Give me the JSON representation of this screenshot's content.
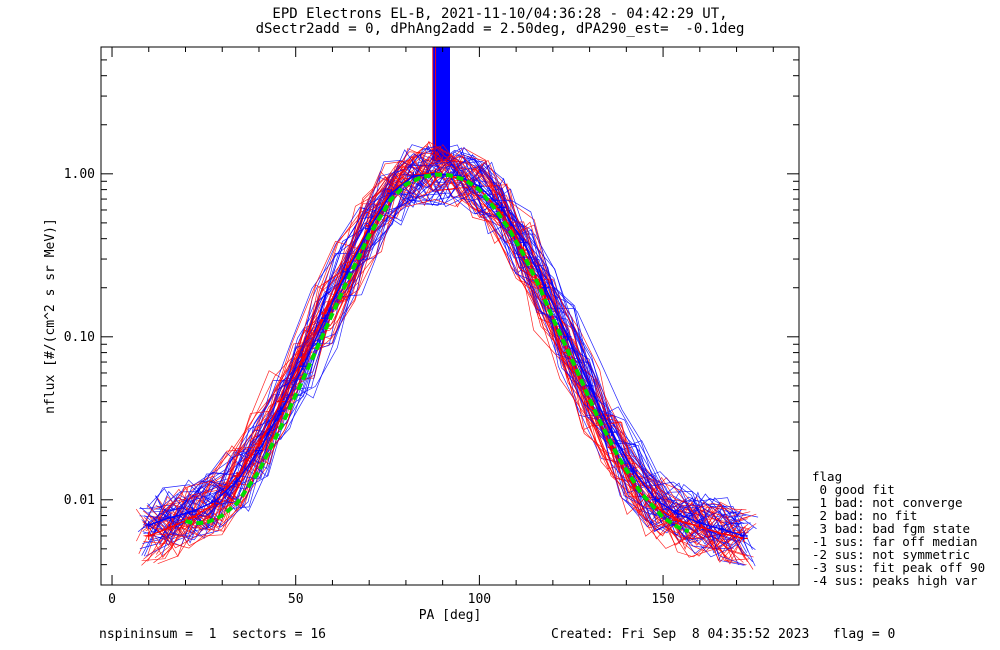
{
  "chart_data": {
    "type": "line",
    "title": "EPD Electrons EL-B, 2021-11-10/04:36:28 - 04:42:29 UT,",
    "subtitle": "dSectr2add = 0, dPhAng2add = 2.50deg, dPA290_est=  -0.1deg",
    "xlabel": "PA [deg]",
    "ylabel": "nflux [#/(cm^2 s sr MeV)]",
    "xlim": [
      -3,
      187
    ],
    "ylim": [
      0.003,
      6.0
    ],
    "yscale": "log",
    "x_ticks": [
      "0",
      "50",
      "100",
      "150"
    ],
    "y_ticks": [
      "0.01",
      "0.10",
      "1.00"
    ],
    "series": [
      {
        "color": "#ff0000",
        "marker": "+",
        "x": [
          10,
          16,
          22,
          28,
          34,
          40,
          46,
          52,
          58,
          64,
          70,
          76,
          82,
          88,
          94,
          100,
          106,
          112,
          118,
          124,
          130,
          136,
          142,
          148,
          154,
          160,
          166,
          172
        ],
        "y": [
          0.006,
          0.0068,
          0.0078,
          0.0095,
          0.014,
          0.022,
          0.04,
          0.075,
          0.14,
          0.26,
          0.48,
          0.78,
          0.98,
          1.02,
          0.95,
          0.8,
          0.58,
          0.34,
          0.17,
          0.08,
          0.04,
          0.021,
          0.012,
          0.009,
          0.0075,
          0.0068,
          0.0062,
          0.0058
        ]
      },
      {
        "color": "#0000ff",
        "marker": "+",
        "x": [
          10,
          16,
          22,
          28,
          34,
          40,
          46,
          52,
          58,
          64,
          70,
          76,
          82,
          88,
          94,
          100,
          106,
          112,
          118,
          124,
          130,
          136,
          142,
          148,
          154,
          160,
          166,
          172
        ],
        "y": [
          0.007,
          0.0078,
          0.0085,
          0.0098,
          0.013,
          0.02,
          0.035,
          0.066,
          0.13,
          0.25,
          0.46,
          0.76,
          0.97,
          1.0,
          0.98,
          0.84,
          0.62,
          0.38,
          0.2,
          0.1,
          0.05,
          0.026,
          0.015,
          0.01,
          0.0082,
          0.0072,
          0.0066,
          0.006
        ]
      },
      {
        "color": "#00dd00",
        "style": "dashed",
        "x": [
          20,
          22,
          24,
          26,
          28,
          30,
          34,
          40,
          46,
          52,
          58,
          64,
          70,
          76,
          80,
          84,
          88,
          92,
          96,
          100,
          104,
          108,
          112,
          116,
          120,
          126,
          132,
          138,
          144,
          150,
          154,
          157
        ],
        "y": [
          0.0074,
          0.0072,
          0.0072,
          0.0073,
          0.0076,
          0.008,
          0.0095,
          0.015,
          0.028,
          0.055,
          0.11,
          0.22,
          0.42,
          0.7,
          0.86,
          0.95,
          0.99,
          0.98,
          0.92,
          0.8,
          0.62,
          0.46,
          0.32,
          0.21,
          0.13,
          0.066,
          0.033,
          0.018,
          0.011,
          0.0078,
          0.0068,
          0.0064
        ]
      }
    ]
  },
  "flag_legend": {
    "title": "flag",
    "items": [
      " 0 good fit",
      " 1 bad: not converge",
      " 2 bad: no fit",
      " 3 bad: bad fgm state",
      "-1 sus: far off median",
      "-2 sus: not symmetric",
      "-3 sus: fit peak off 90",
      "-4 sus: peaks high var"
    ]
  },
  "footer": {
    "left": "nspininsum =  1  sectors = 16",
    "right": "Created: Fri Sep  8 04:35:52 2023   flag = 0"
  },
  "colors": {
    "red": "#ff0000",
    "blue": "#0000ff",
    "green_fit": "#00dd00"
  }
}
